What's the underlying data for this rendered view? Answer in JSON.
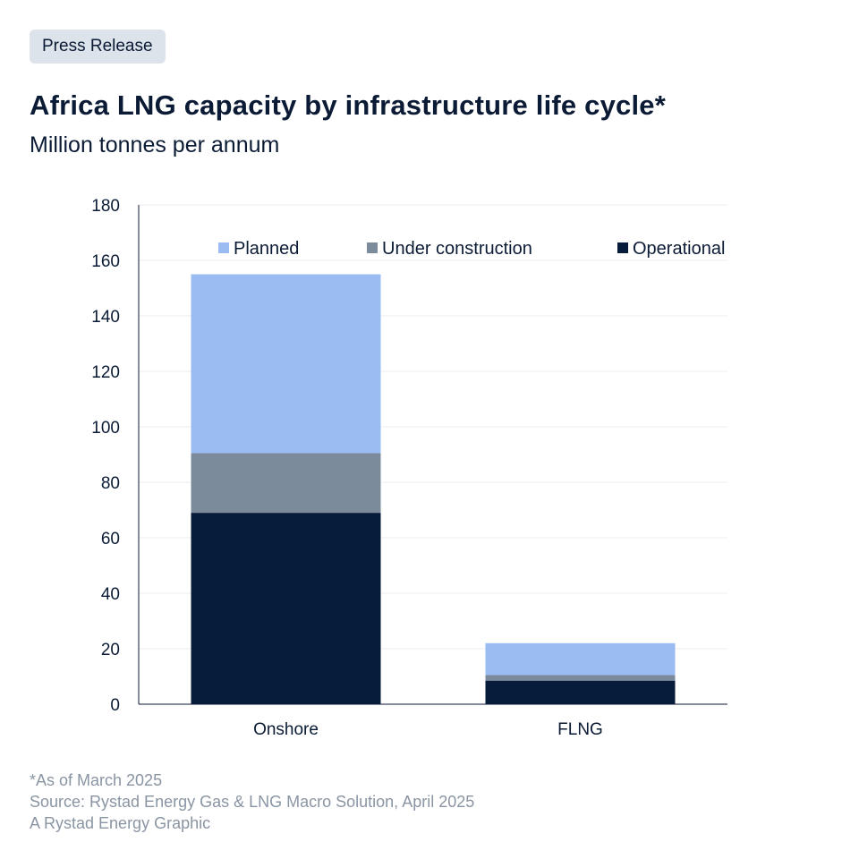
{
  "badge": {
    "label": "Press Release"
  },
  "header": {
    "title": "Africa LNG capacity by infrastructure life cycle*",
    "subtitle": "Million tonnes per annum"
  },
  "chart_data": {
    "type": "bar",
    "stacked": true,
    "categories": [
      "Onshore",
      "FLNG"
    ],
    "series": [
      {
        "name": "Operational",
        "values": [
          69,
          8.5
        ],
        "color": "#071b3a"
      },
      {
        "name": "Under construction",
        "values": [
          21.5,
          2
        ],
        "color": "#7b8b9b"
      },
      {
        "name": "Planned",
        "values": [
          64.5,
          11.5
        ],
        "color": "#9bbcf3"
      }
    ],
    "ylim": [
      0,
      180
    ],
    "yticks": [
      0,
      20,
      40,
      60,
      80,
      100,
      120,
      140,
      160,
      180
    ],
    "legend_order": [
      "Planned",
      "Under construction",
      "Operational"
    ],
    "legend_position": "top",
    "grid": true
  },
  "footer": {
    "note": "*As of March 2025",
    "source": "Source: Rystad Energy Gas & LNG Macro Solution, April 2025",
    "credit": "A Rystad Energy Graphic"
  }
}
